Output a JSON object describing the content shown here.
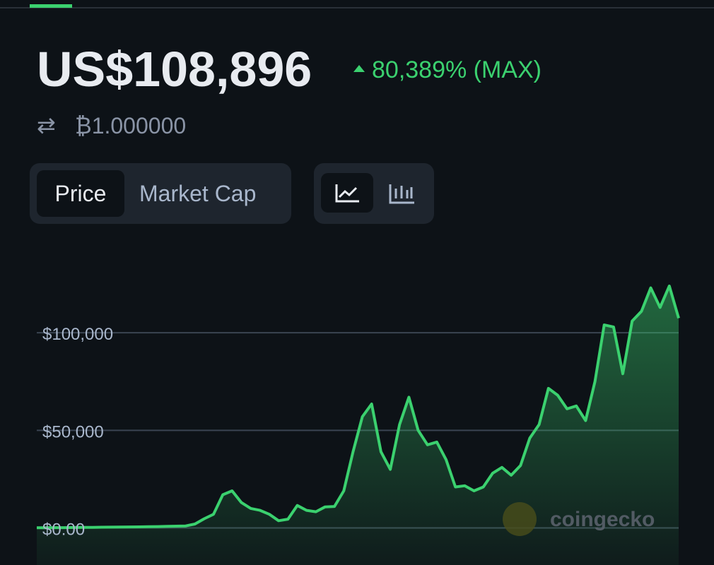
{
  "header": {
    "price": "US$108,896",
    "change": "80,389% (MAX)",
    "btc_price": "₿1.000000"
  },
  "tabs": {
    "data_type": [
      "Price",
      "Market Cap"
    ]
  },
  "watermark": "coingecko",
  "chart_data": {
    "type": "area",
    "color": "#3bd16f",
    "grid": true,
    "ylim": [
      -19000,
      133000
    ],
    "yticks": [
      {
        "value": 0,
        "label": "$0.00"
      },
      {
        "value": 50000,
        "label": "$50,000"
      },
      {
        "value": 100000,
        "label": "$100,000"
      }
    ],
    "values": [
      100,
      120,
      130,
      150,
      200,
      250,
      300,
      350,
      400,
      450,
      500,
      550,
      600,
      700,
      800,
      900,
      1000,
      2000,
      4700,
      7000,
      17000,
      19000,
      13000,
      10000,
      9000,
      7000,
      3700,
      4500,
      11500,
      9000,
      8300,
      10800,
      11000,
      19000,
      39000,
      57000,
      63500,
      39000,
      30000,
      53000,
      67000,
      50000,
      42600,
      44000,
      35000,
      21000,
      21600,
      19000,
      21000,
      28000,
      31000,
      27000,
      32000,
      46000,
      53000,
      71500,
      68000,
      61000,
      62500,
      55000,
      75000,
      104000,
      103000,
      79000,
      106000,
      111000,
      123000,
      113000,
      124000,
      107500
    ]
  }
}
